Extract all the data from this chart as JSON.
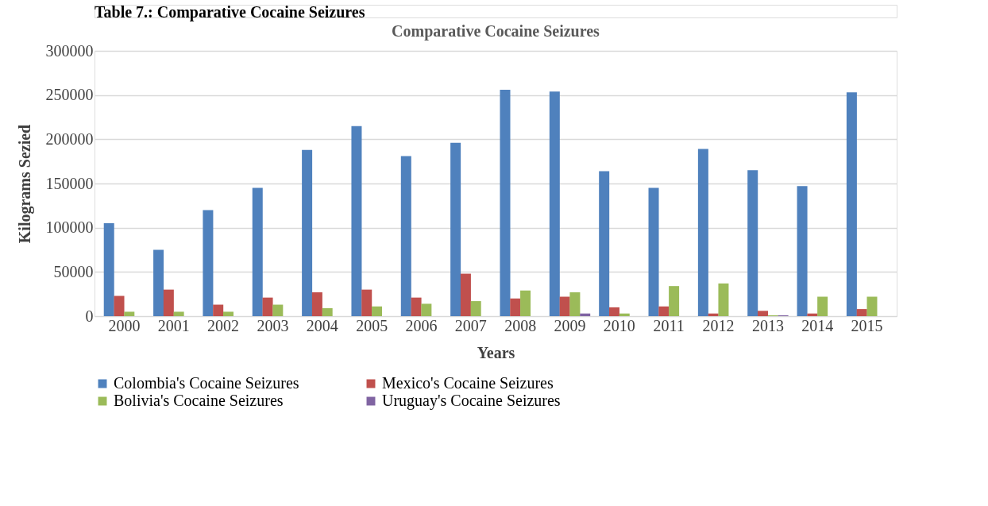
{
  "chart_data": {
    "type": "bar",
    "title": "Comparative Cocaine Seizures",
    "xlabel": "Years",
    "ylabel": "Kilograms Sezied",
    "annotations": [
      "Table 7.: Comparative Cocaine Seizures"
    ],
    "categories": [
      "2000",
      "2001",
      "2002",
      "2003",
      "2004",
      "2005",
      "2006",
      "2007",
      "2008",
      "2009",
      "2010",
      "2011",
      "2012",
      "2013",
      "2014",
      "2015"
    ],
    "series": [
      {
        "name": "Colombia's Cocaine Seizures",
        "color": "#4f81bd",
        "values": [
          105000,
          75000,
          120000,
          145000,
          188000,
          215000,
          181000,
          196000,
          256000,
          254000,
          164000,
          145000,
          189000,
          165000,
          147000,
          253000
        ]
      },
      {
        "name": "Mexico's Cocaine Seizures",
        "color": "#c0504d",
        "values": [
          23000,
          30000,
          13000,
          21000,
          27000,
          30000,
          21000,
          48000,
          20000,
          22000,
          10000,
          11000,
          3000,
          6000,
          3000,
          8000
        ]
      },
      {
        "name": "Bolivia's Cocaine Seizures",
        "color": "#9bbb59",
        "values": [
          5000,
          5000,
          5000,
          13000,
          9000,
          11000,
          14000,
          17000,
          29000,
          27000,
          3000,
          34000,
          37000,
          1000,
          22000,
          22000
        ]
      },
      {
        "name": "Uruguay's Cocaine Seizures",
        "color": "#8064a2",
        "values": [
          null,
          null,
          null,
          null,
          null,
          null,
          null,
          null,
          null,
          3000,
          null,
          null,
          null,
          1000,
          null,
          null
        ]
      }
    ],
    "ylim": [
      0,
      300000
    ],
    "yticks": [
      0,
      50000,
      100000,
      150000,
      200000,
      250000,
      300000
    ],
    "grid": "y",
    "legend": "bottom"
  }
}
